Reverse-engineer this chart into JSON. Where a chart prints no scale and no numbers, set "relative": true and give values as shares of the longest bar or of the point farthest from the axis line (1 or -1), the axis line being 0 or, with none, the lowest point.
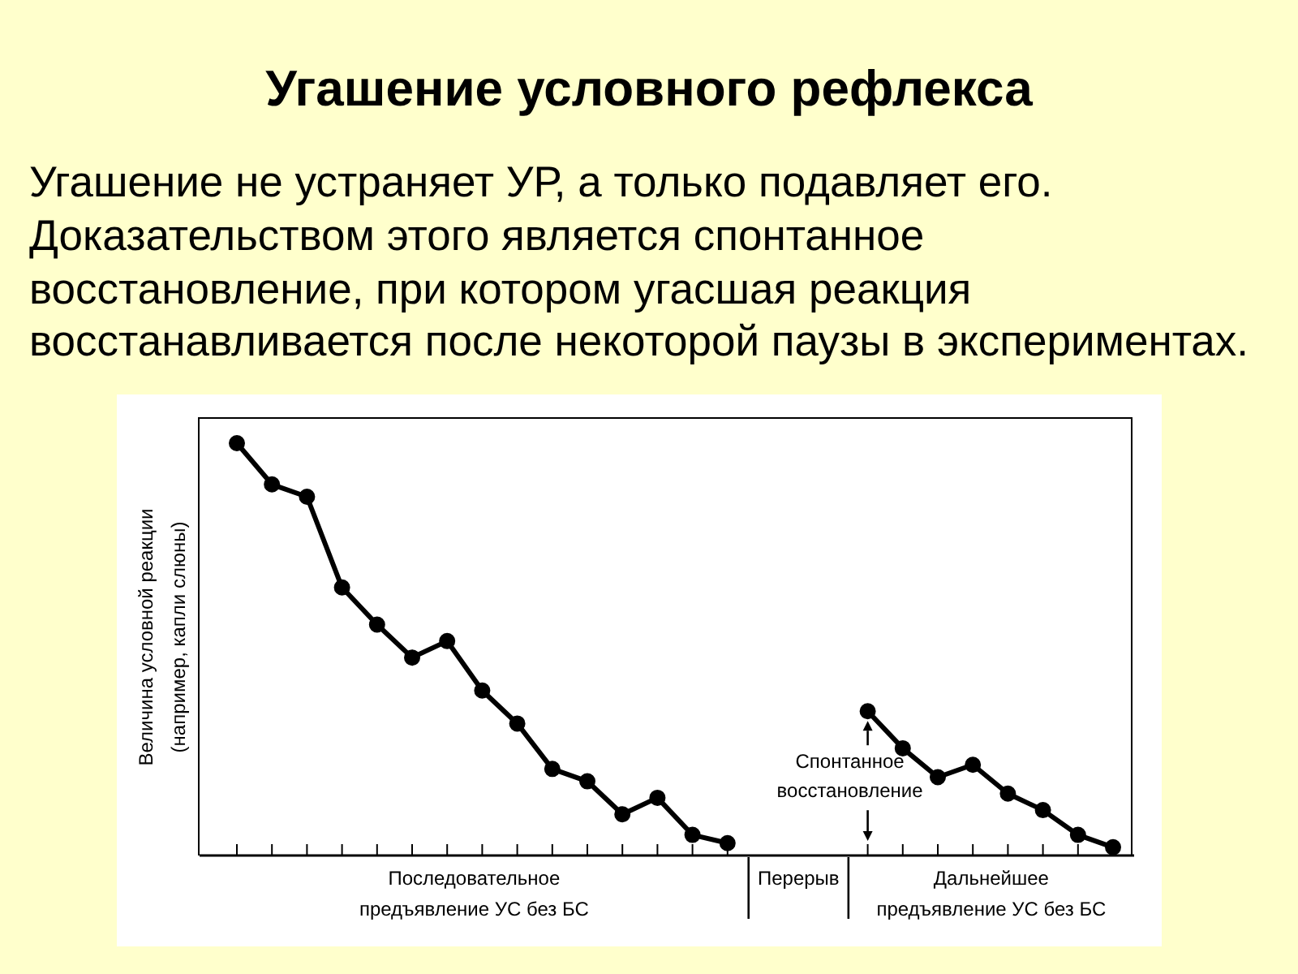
{
  "chart_data": {
    "type": "line",
    "title": "Угашение условного рефлекса",
    "subtitle": "Угашение не устраняет УР, а только подавляет его.\nДоказательством этого является спонтанное\nвосстановление, при котором угасшая реакция\nвосстанавливается после некоторой паузы в экспериментах.",
    "ylabel": "Величина условной реакции\n(например, капли слюны)",
    "categories": [
      null,
      null,
      null,
      null,
      null,
      null,
      null,
      null,
      null,
      null,
      null,
      null,
      null,
      null,
      null,
      null,
      null,
      null,
      null,
      null,
      null,
      null,
      null,
      null,
      null,
      null
    ],
    "series": [
      {
        "color": "#000000",
        "values": [
          1.0,
          0.9,
          0.87,
          0.65,
          0.56,
          0.48,
          0.52,
          0.4,
          0.32,
          0.21,
          0.18,
          0.1,
          0.14,
          0.05,
          0.03,
          null,
          null,
          null,
          null,
          null,
          null,
          null,
          null,
          null,
          null,
          null
        ]
      },
      {
        "color": "#000000",
        "values": [
          null,
          null,
          null,
          null,
          null,
          null,
          null,
          null,
          null,
          null,
          null,
          null,
          null,
          null,
          null,
          null,
          null,
          null,
          0.35,
          0.26,
          0.19,
          0.22,
          0.15,
          0.11,
          0.05,
          0.02
        ]
      }
    ],
    "relative": true,
    "marker": "circle",
    "line_style": "solid",
    "annotations": [
      "Последовательное\nпредъявление УС без БС",
      "Перерыв",
      "Дальнейшее\nпредъявление УС без БС",
      "Спонтанное\nвосстановление"
    ]
  }
}
